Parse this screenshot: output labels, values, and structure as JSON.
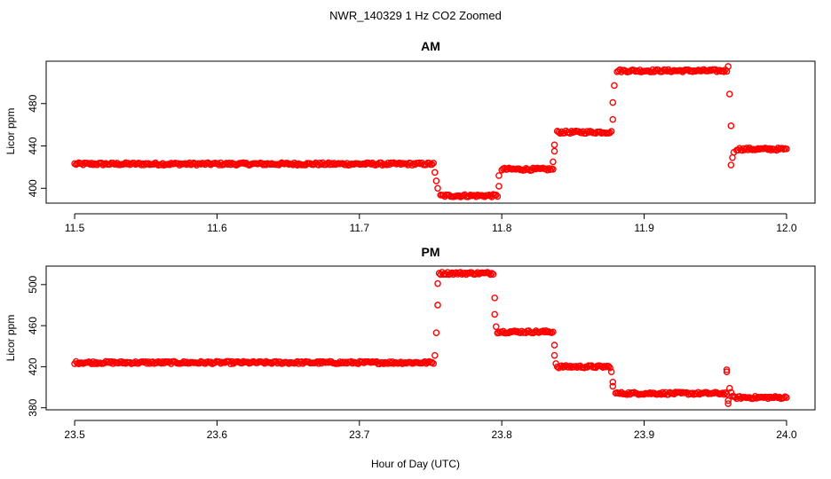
{
  "title": "NWR_140329  1 Hz CO2 Zoomed",
  "xlabel": "Hour of Day (UTC)",
  "chart_data": [
    {
      "type": "scatter",
      "title": "AM",
      "xlabel": "",
      "ylabel": "Licor ppm",
      "xlim": [
        11.48,
        12.02
      ],
      "ylim": [
        386,
        520
      ],
      "xticks": [
        11.5,
        11.6,
        11.7,
        11.8,
        11.9,
        12.0
      ],
      "xtick_labels": [
        "11.5",
        "11.6",
        "11.7",
        "11.8",
        "11.9",
        "12.0"
      ],
      "yticks": [
        400,
        440,
        480
      ],
      "ytick_labels": [
        "400",
        "440",
        "480"
      ],
      "marker_color": "#ff0000",
      "marker": "open-circle",
      "series": [
        {
          "segments": [
            {
              "x_start": 11.5,
              "x_end": 11.752,
              "y": 423,
              "noise": 1.2
            },
            {
              "x_start": 11.757,
              "x_end": 11.797,
              "y": 393,
              "noise": 1.2
            },
            {
              "x_start": 11.8,
              "x_end": 11.836,
              "y": 418,
              "noise": 1.2
            },
            {
              "x_start": 11.839,
              "x_end": 11.877,
              "y": 453,
              "noise": 1.2
            },
            {
              "x_start": 11.881,
              "x_end": 11.958,
              "y": 511,
              "noise": 1.2
            },
            {
              "x_start": 11.965,
              "x_end": 12.0,
              "y": 437,
              "noise": 1.2
            }
          ],
          "transition_points": [
            {
              "x": 11.753,
              "y": 415
            },
            {
              "x": 11.754,
              "y": 407
            },
            {
              "x": 11.755,
              "y": 400
            },
            {
              "x": 11.798,
              "y": 402
            },
            {
              "x": 11.798,
              "y": 412
            },
            {
              "x": 11.836,
              "y": 425
            },
            {
              "x": 11.837,
              "y": 435
            },
            {
              "x": 11.837,
              "y": 441
            },
            {
              "x": 11.878,
              "y": 465
            },
            {
              "x": 11.878,
              "y": 481
            },
            {
              "x": 11.879,
              "y": 497
            },
            {
              "x": 11.959,
              "y": 515
            },
            {
              "x": 11.96,
              "y": 489
            },
            {
              "x": 11.961,
              "y": 459
            },
            {
              "x": 11.961,
              "y": 422
            },
            {
              "x": 11.962,
              "y": 429
            },
            {
              "x": 11.963,
              "y": 434
            }
          ]
        }
      ]
    },
    {
      "type": "scatter",
      "title": "PM",
      "xlabel": "",
      "ylabel": "Licor ppm",
      "xlim": [
        23.48,
        24.02
      ],
      "ylim": [
        378,
        518
      ],
      "xticks": [
        23.5,
        23.6,
        23.7,
        23.8,
        23.9,
        24.0
      ],
      "xtick_labels": [
        "23.5",
        "23.6",
        "23.7",
        "23.8",
        "23.9",
        "24.0"
      ],
      "yticks": [
        380,
        420,
        460,
        500
      ],
      "ytick_labels": [
        "380",
        "420",
        "460",
        "500"
      ],
      "marker_color": "#ff0000",
      "marker": "open-circle",
      "series": [
        {
          "segments": [
            {
              "x_start": 23.5,
              "x_end": 23.752,
              "y": 424,
              "noise": 1.2
            },
            {
              "x_start": 23.756,
              "x_end": 23.794,
              "y": 511,
              "noise": 1.2
            },
            {
              "x_start": 23.797,
              "x_end": 23.836,
              "y": 454,
              "noise": 1.2
            },
            {
              "x_start": 23.839,
              "x_end": 23.876,
              "y": 420,
              "noise": 1.2
            },
            {
              "x_start": 23.88,
              "x_end": 23.958,
              "y": 394,
              "noise": 1.2
            },
            {
              "x_start": 23.962,
              "x_end": 24.0,
              "y": 390,
              "noise": 1.2
            }
          ],
          "transition_points": [
            {
              "x": 23.753,
              "y": 431
            },
            {
              "x": 23.754,
              "y": 453
            },
            {
              "x": 23.755,
              "y": 480
            },
            {
              "x": 23.755,
              "y": 501
            },
            {
              "x": 23.795,
              "y": 487
            },
            {
              "x": 23.795,
              "y": 471
            },
            {
              "x": 23.796,
              "y": 459
            },
            {
              "x": 23.837,
              "y": 441
            },
            {
              "x": 23.837,
              "y": 431
            },
            {
              "x": 23.838,
              "y": 423
            },
            {
              "x": 23.877,
              "y": 415
            },
            {
              "x": 23.878,
              "y": 405
            },
            {
              "x": 23.878,
              "y": 401
            },
            {
              "x": 23.958,
              "y": 415
            },
            {
              "x": 23.958,
              "y": 417
            },
            {
              "x": 23.959,
              "y": 387
            },
            {
              "x": 23.959,
              "y": 384
            },
            {
              "x": 23.96,
              "y": 399
            },
            {
              "x": 23.961,
              "y": 395
            }
          ]
        }
      ]
    }
  ]
}
